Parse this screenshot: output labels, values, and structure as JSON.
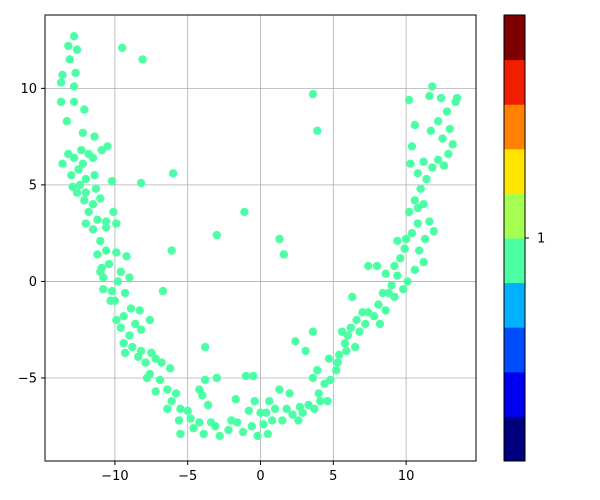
{
  "chart_data": {
    "type": "scatter",
    "title": "",
    "xlabel": "",
    "ylabel": "",
    "xlim": [
      -14.8,
      14.8
    ],
    "ylim": [
      -9.3,
      13.8
    ],
    "xticks": [
      -10,
      -5,
      0,
      5,
      10
    ],
    "yticks": [
      -5,
      0,
      5,
      10
    ],
    "xtick_labels": [
      "−10",
      "−5",
      "0",
      "5",
      "10"
    ],
    "ytick_labels": [
      "−5",
      "0",
      "5",
      "10"
    ],
    "grid": true,
    "point_color": "#4cffa5",
    "series": [
      {
        "points": [
          [
            -12.8,
            12.7
          ],
          [
            -12.6,
            12.0
          ],
          [
            -13.2,
            12.2
          ],
          [
            -13.1,
            11.5
          ],
          [
            -12.7,
            10.8
          ],
          [
            -13.6,
            10.7
          ],
          [
            -13.7,
            10.3
          ],
          [
            -12.8,
            10.1
          ],
          [
            -13.7,
            9.3
          ],
          [
            -12.8,
            9.3
          ],
          [
            -12.1,
            8.9
          ],
          [
            -13.3,
            8.3
          ],
          [
            -12.2,
            7.7
          ],
          [
            -11.4,
            7.5
          ],
          [
            -10.5,
            7.0
          ],
          [
            -10.9,
            6.8
          ],
          [
            -13.2,
            6.6
          ],
          [
            -12.8,
            6.4
          ],
          [
            -12.2,
            6.1
          ],
          [
            -11.5,
            6.4
          ],
          [
            -13.6,
            6.1
          ],
          [
            -12.5,
            5.8
          ],
          [
            -13.0,
            5.5
          ],
          [
            -12.4,
            5.0
          ],
          [
            -12.0,
            5.3
          ],
          [
            -11.3,
            4.8
          ],
          [
            -12.6,
            4.6
          ],
          [
            -12.1,
            4.2
          ],
          [
            -11.5,
            4.0
          ],
          [
            -11.0,
            4.3
          ],
          [
            -10.2,
            5.2
          ],
          [
            -8.2,
            5.1
          ],
          [
            -11.8,
            3.6
          ],
          [
            -11.2,
            3.2
          ],
          [
            -12.0,
            3.0
          ],
          [
            -11.5,
            2.7
          ],
          [
            -10.6,
            3.1
          ],
          [
            -10.1,
            3.6
          ],
          [
            -9.9,
            3.0
          ],
          [
            -11.0,
            2.1
          ],
          [
            -10.6,
            1.6
          ],
          [
            -11.2,
            1.4
          ],
          [
            -9.9,
            1.5
          ],
          [
            -10.4,
            0.9
          ],
          [
            -10.9,
            0.7
          ],
          [
            -9.2,
            1.3
          ],
          [
            -9.6,
            0.5
          ],
          [
            -10.8,
            0.2
          ],
          [
            -9.8,
            0.0
          ],
          [
            -10.2,
            -0.5
          ],
          [
            -10.8,
            -0.4
          ],
          [
            -10.0,
            -1.0
          ],
          [
            -9.3,
            -0.6
          ],
          [
            -8.9,
            -1.4
          ],
          [
            -9.4,
            -1.8
          ],
          [
            -9.9,
            -2.0
          ],
          [
            -9.6,
            -2.4
          ],
          [
            -8.6,
            -2.2
          ],
          [
            -9.0,
            -2.8
          ],
          [
            -8.2,
            -2.5
          ],
          [
            -9.4,
            -3.2
          ],
          [
            -8.8,
            -3.4
          ],
          [
            -8.2,
            -3.6
          ],
          [
            -7.5,
            -3.7
          ],
          [
            -7.9,
            -4.2
          ],
          [
            -7.2,
            -4.0
          ],
          [
            -6.8,
            -4.2
          ],
          [
            -7.6,
            -4.8
          ],
          [
            -6.9,
            -5.1
          ],
          [
            -6.2,
            -4.5
          ],
          [
            -6.4,
            -5.6
          ],
          [
            -7.2,
            -5.7
          ],
          [
            -5.8,
            -5.8
          ],
          [
            -6.1,
            -6.2
          ],
          [
            -5.5,
            -6.6
          ],
          [
            -6.4,
            -6.6
          ],
          [
            -5.0,
            -6.7
          ],
          [
            -5.6,
            -7.2
          ],
          [
            -4.8,
            -7.1
          ],
          [
            -4.2,
            -7.3
          ],
          [
            -4.6,
            -7.6
          ],
          [
            -3.9,
            -7.9
          ],
          [
            -3.4,
            -7.3
          ],
          [
            -4.0,
            -5.9
          ],
          [
            -3.6,
            -6.4
          ],
          [
            -3.0,
            -5.0
          ],
          [
            -3.8,
            -5.1
          ],
          [
            -2.8,
            -8.0
          ],
          [
            -2.2,
            -7.7
          ],
          [
            -1.6,
            -7.3
          ],
          [
            -1.2,
            -7.8
          ],
          [
            -0.6,
            -7.5
          ],
          [
            -0.8,
            -6.7
          ],
          [
            -0.4,
            -6.2
          ],
          [
            0.0,
            -6.8
          ],
          [
            0.2,
            -7.4
          ],
          [
            -0.2,
            -8.0
          ],
          [
            0.5,
            -7.9
          ],
          [
            0.8,
            -7.2
          ],
          [
            0.4,
            -6.8
          ],
          [
            1.0,
            -6.6
          ],
          [
            1.5,
            -7.2
          ],
          [
            1.8,
            -6.6
          ],
          [
            2.2,
            -6.9
          ],
          [
            2.6,
            -7.2
          ],
          [
            2.9,
            -6.8
          ],
          [
            3.3,
            -6.4
          ],
          [
            3.7,
            -6.6
          ],
          [
            4.1,
            -6.2
          ],
          [
            4.6,
            -6.2
          ],
          [
            4.0,
            -5.8
          ],
          [
            4.4,
            -5.3
          ],
          [
            3.6,
            -5.0
          ],
          [
            3.9,
            -4.6
          ],
          [
            4.8,
            -5.1
          ],
          [
            5.2,
            -4.6
          ],
          [
            4.7,
            -4.0
          ],
          [
            5.4,
            -3.8
          ],
          [
            5.8,
            -3.2
          ],
          [
            6.0,
            -2.8
          ],
          [
            6.5,
            -3.4
          ],
          [
            6.8,
            -2.6
          ],
          [
            7.2,
            -2.2
          ],
          [
            7.4,
            -1.6
          ],
          [
            7.8,
            -1.8
          ],
          [
            8.1,
            -1.2
          ],
          [
            8.4,
            -0.6
          ],
          [
            8.6,
            -1.5
          ],
          [
            8.2,
            -2.2
          ],
          [
            9.0,
            -0.2
          ],
          [
            9.4,
            0.3
          ],
          [
            9.2,
            0.8
          ],
          [
            9.6,
            1.2
          ],
          [
            9.9,
            1.7
          ],
          [
            10.0,
            2.2
          ],
          [
            9.4,
            2.1
          ],
          [
            10.4,
            2.5
          ],
          [
            10.8,
            3.0
          ],
          [
            10.2,
            3.6
          ],
          [
            10.6,
            4.2
          ],
          [
            11.0,
            4.8
          ],
          [
            11.4,
            5.3
          ],
          [
            11.8,
            5.9
          ],
          [
            11.2,
            6.2
          ],
          [
            12.2,
            6.3
          ],
          [
            12.6,
            6.0
          ],
          [
            12.9,
            6.6
          ],
          [
            13.2,
            7.1
          ],
          [
            12.5,
            7.4
          ],
          [
            13.0,
            7.9
          ],
          [
            12.2,
            8.3
          ],
          [
            11.7,
            7.8
          ],
          [
            12.8,
            8.8
          ],
          [
            13.4,
            9.3
          ],
          [
            12.4,
            9.5
          ],
          [
            11.6,
            9.6
          ],
          [
            11.8,
            10.1
          ],
          [
            13.5,
            9.5
          ],
          [
            10.2,
            9.4
          ],
          [
            10.6,
            8.1
          ],
          [
            10.4,
            7.0
          ],
          [
            10.3,
            6.1
          ],
          [
            10.8,
            5.6
          ],
          [
            11.2,
            4.0
          ],
          [
            10.8,
            3.8
          ],
          [
            11.6,
            3.1
          ],
          [
            11.9,
            2.6
          ],
          [
            11.3,
            2.2
          ],
          [
            10.9,
            1.6
          ],
          [
            11.2,
            1.0
          ],
          [
            10.6,
            0.6
          ],
          [
            10.1,
            0.0
          ],
          [
            9.8,
            -0.4
          ],
          [
            9.2,
            -0.8
          ],
          [
            8.8,
            -0.6
          ],
          [
            8.0,
            0.8
          ],
          [
            7.4,
            0.8
          ],
          [
            8.6,
            0.4
          ],
          [
            7.0,
            -1.6
          ],
          [
            6.6,
            -2.0
          ],
          [
            6.2,
            -2.4
          ],
          [
            5.6,
            -2.6
          ],
          [
            5.9,
            -3.6
          ],
          [
            5.3,
            -4.2
          ],
          [
            6.3,
            -0.8
          ],
          [
            -6.0,
            5.6
          ],
          [
            -6.1,
            1.6
          ],
          [
            -6.7,
            -0.5
          ],
          [
            -3.0,
            2.4
          ],
          [
            -1.1,
            3.6
          ],
          [
            1.3,
            2.2
          ],
          [
            1.6,
            1.4
          ],
          [
            3.6,
            9.7
          ],
          [
            3.9,
            7.8
          ],
          [
            -9.5,
            12.1
          ],
          [
            -8.1,
            11.5
          ],
          [
            -3.8,
            -3.4
          ],
          [
            2.4,
            -3.1
          ],
          [
            3.6,
            -2.6
          ],
          [
            3.1,
            -3.6
          ],
          [
            -1.7,
            -6.1
          ],
          [
            -5.5,
            -7.9
          ],
          [
            -4.2,
            -5.6
          ],
          [
            -3.1,
            -7.5
          ],
          [
            -2.0,
            -7.2
          ],
          [
            -1.0,
            -4.9
          ],
          [
            -0.5,
            -4.9
          ],
          [
            1.3,
            -5.6
          ],
          [
            0.6,
            -6.2
          ],
          [
            2.0,
            -5.8
          ],
          [
            2.7,
            -6.5
          ],
          [
            -8.4,
            -3.9
          ],
          [
            -7.8,
            -5.0
          ],
          [
            -8.3,
            -1.5
          ],
          [
            -7.6,
            -2.0
          ],
          [
            -9.3,
            -3.7
          ],
          [
            -10.3,
            -1.0
          ],
          [
            -11.0,
            0.5
          ],
          [
            -9.0,
            0.2
          ],
          [
            -10.6,
            2.8
          ],
          [
            -11.4,
            5.5
          ],
          [
            -11.8,
            6.6
          ],
          [
            -12.0,
            4.6
          ],
          [
            -12.9,
            4.9
          ],
          [
            -12.3,
            6.8
          ]
        ]
      }
    ],
    "colorbar": {
      "colors": [
        "#00007f",
        "#0000f1",
        "#004dff",
        "#00b1ff",
        "#4cffa5",
        "#a4ff51",
        "#ffe500",
        "#ff8100",
        "#f11d00",
        "#7f0000"
      ],
      "tick_label": "1"
    }
  }
}
